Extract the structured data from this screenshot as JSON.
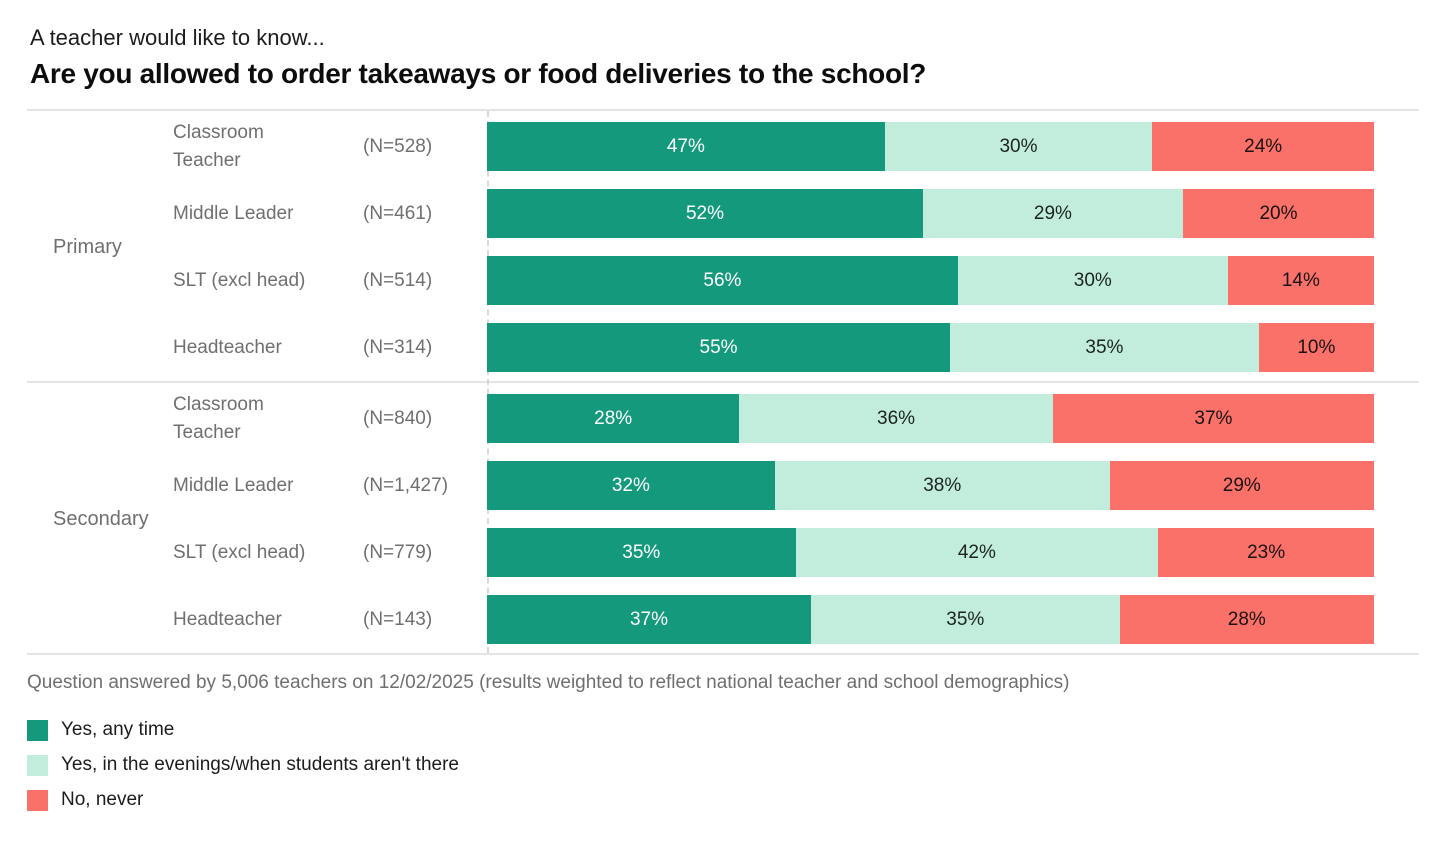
{
  "header": {
    "kicker": "A teacher would like to know...",
    "title": "Are you allowed to order takeaways or food deliveries to the school?"
  },
  "footnote": "Question answered by 5,006 teachers on 12/02/2025 (results weighted to reflect national teacher and school demographics)",
  "legend": [
    {
      "label": "Yes, any time",
      "color": "#14997c"
    },
    {
      "label": "Yes, in the evenings/when students aren't there",
      "color": "#c2eddd"
    },
    {
      "label": "No, never",
      "color": "#f97168"
    }
  ],
  "chart_data": {
    "type": "bar",
    "orientation": "horizontal",
    "stacked": true,
    "unit": "%",
    "title": "Are you allowed to order takeaways or food deliveries to the school?",
    "subtitle": "A teacher would like to know...",
    "series_names": [
      "Yes, any time",
      "Yes, in the evenings/when students aren't there",
      "No, never"
    ],
    "series_colors": [
      "#14997c",
      "#c2eddd",
      "#f97168"
    ],
    "legend_position": "bottom-left",
    "grid": false,
    "xlim": [
      0,
      100
    ],
    "groups": [
      {
        "label": "Primary",
        "rows": [
          {
            "role": "Classroom Teacher",
            "n_label": "(N=528)",
            "values": [
              47,
              30,
              24
            ]
          },
          {
            "role": "Middle Leader",
            "n_label": "(N=461)",
            "values": [
              52,
              29,
              20
            ]
          },
          {
            "role": "SLT (excl head)",
            "n_label": "(N=514)",
            "values": [
              56,
              30,
              14
            ]
          },
          {
            "role": "Headteacher",
            "n_label": "(N=314)",
            "values": [
              55,
              35,
              10
            ]
          }
        ]
      },
      {
        "label": "Secondary",
        "rows": [
          {
            "role": "Classroom Teacher",
            "n_label": "(N=840)",
            "values": [
              28,
              36,
              37
            ]
          },
          {
            "role": "Middle Leader",
            "n_label": "(N=1,427)",
            "values": [
              32,
              38,
              29
            ]
          },
          {
            "role": "SLT (excl head)",
            "n_label": "(N=779)",
            "values": [
              35,
              42,
              23
            ]
          },
          {
            "role": "Headteacher",
            "n_label": "(N=143)",
            "values": [
              37,
              35,
              28
            ]
          }
        ]
      }
    ],
    "footnote": "Question answered by 5,006 teachers on 12/02/2025 (results weighted to reflect national teacher and school demographics)"
  }
}
